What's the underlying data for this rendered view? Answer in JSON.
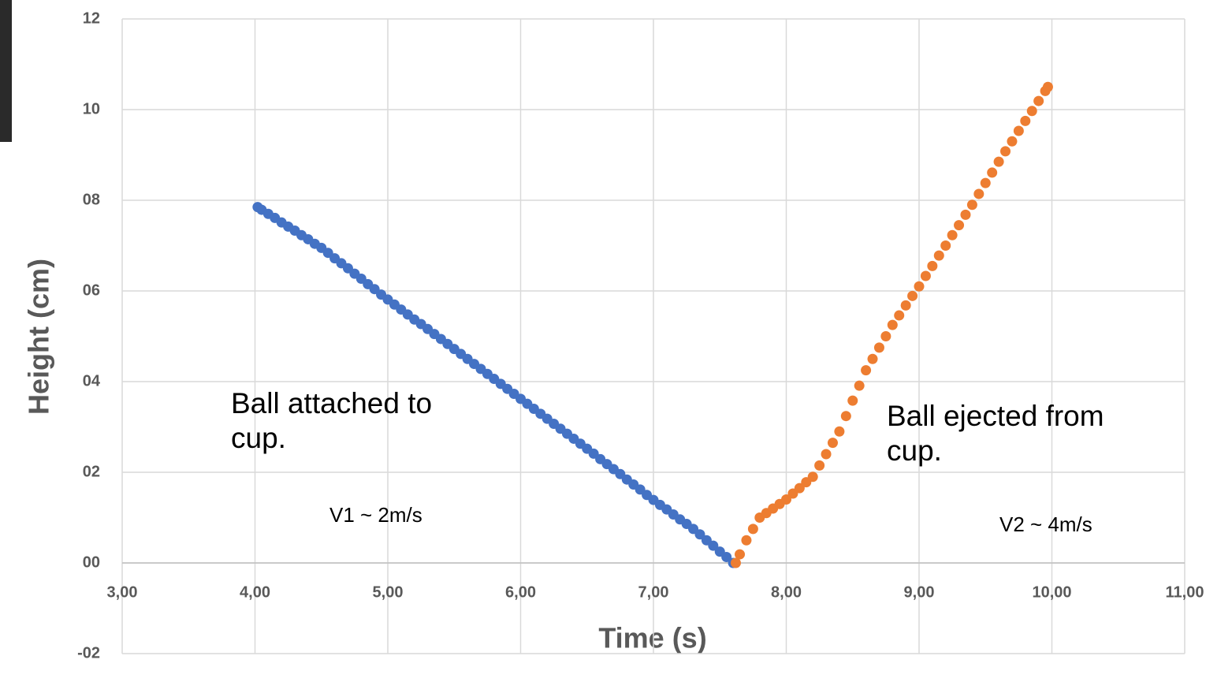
{
  "chart_data": {
    "type": "scatter",
    "xlabel": "Time (s)",
    "ylabel": "Height (cm)",
    "xlim": [
      3,
      11
    ],
    "ylim": [
      -2,
      12
    ],
    "xticks": [
      {
        "value": 3,
        "label": "3,00"
      },
      {
        "value": 4,
        "label": "4,00"
      },
      {
        "value": 5,
        "label": "5,00"
      },
      {
        "value": 6,
        "label": "6,00"
      },
      {
        "value": 7,
        "label": "7,00"
      },
      {
        "value": 8,
        "label": "8,00"
      },
      {
        "value": 9,
        "label": "9,00"
      },
      {
        "value": 10,
        "label": "10,00"
      },
      {
        "value": 11,
        "label": "11,00"
      }
    ],
    "yticks": [
      {
        "value": -2,
        "label": "-02"
      },
      {
        "value": 0,
        "label": "00"
      },
      {
        "value": 2,
        "label": "02"
      },
      {
        "value": 4,
        "label": "04"
      },
      {
        "value": 6,
        "label": "06"
      },
      {
        "value": 8,
        "label": "08"
      },
      10,
      12
    ],
    "grid": true,
    "annotations": [
      "Ball attached to cup.",
      "V1 ~ 2m/s",
      "Ball ejected from cup.",
      "V2 ~ 4m/s"
    ],
    "series": [
      {
        "color": "#4472c4",
        "x": [
          4.02,
          4.05,
          4.1,
          4.15,
          4.2,
          4.25,
          4.3,
          4.35,
          4.4,
          4.45,
          4.5,
          4.55,
          4.6,
          4.65,
          4.7,
          4.75,
          4.8,
          4.85,
          4.9,
          4.95,
          5.0,
          5.05,
          5.1,
          5.15,
          5.2,
          5.25,
          5.3,
          5.35,
          5.4,
          5.45,
          5.5,
          5.55,
          5.6,
          5.65,
          5.7,
          5.75,
          5.8,
          5.85,
          5.9,
          5.95,
          6.0,
          6.05,
          6.1,
          6.15,
          6.2,
          6.25,
          6.3,
          6.35,
          6.4,
          6.45,
          6.5,
          6.55,
          6.6,
          6.65,
          6.7,
          6.75,
          6.8,
          6.85,
          6.9,
          6.95,
          7.0,
          7.05,
          7.1,
          7.15,
          7.2,
          7.25,
          7.3,
          7.35,
          7.4,
          7.45,
          7.5,
          7.55,
          7.6
        ],
        "values": [
          7.85,
          7.79,
          7.7,
          7.61,
          7.51,
          7.42,
          7.33,
          7.23,
          7.14,
          7.04,
          6.95,
          6.84,
          6.72,
          6.61,
          6.5,
          6.38,
          6.27,
          6.15,
          6.04,
          5.92,
          5.81,
          5.7,
          5.59,
          5.48,
          5.37,
          5.27,
          5.16,
          5.05,
          4.94,
          4.83,
          4.72,
          4.61,
          4.5,
          4.39,
          4.28,
          4.17,
          4.06,
          3.95,
          3.84,
          3.73,
          3.62,
          3.51,
          3.4,
          3.29,
          3.18,
          3.07,
          2.96,
          2.85,
          2.74,
          2.63,
          2.52,
          2.41,
          2.29,
          2.18,
          2.07,
          1.96,
          1.84,
          1.73,
          1.62,
          1.5,
          1.39,
          1.28,
          1.18,
          1.07,
          0.96,
          0.86,
          0.75,
          0.63,
          0.5,
          0.38,
          0.25,
          0.13,
          0.0
        ]
      },
      {
        "color": "#ed7d31",
        "x": [
          7.62,
          7.65,
          7.7,
          7.75,
          7.8,
          7.85,
          7.9,
          7.95,
          8.0,
          8.05,
          8.1,
          8.15,
          8.2,
          8.25,
          8.3,
          8.35,
          8.4,
          8.45,
          8.5,
          8.55,
          8.6,
          8.65,
          8.7,
          8.75,
          8.8,
          8.85,
          8.9,
          8.95,
          9.0,
          9.05,
          9.1,
          9.15,
          9.2,
          9.25,
          9.3,
          9.35,
          9.4,
          9.45,
          9.5,
          9.55,
          9.6,
          9.65,
          9.7,
          9.75,
          9.8,
          9.85,
          9.9,
          9.95,
          9.97
        ],
        "values": [
          0.0,
          0.19,
          0.5,
          0.75,
          1.0,
          1.1,
          1.2,
          1.3,
          1.4,
          1.53,
          1.65,
          1.78,
          1.9,
          2.15,
          2.4,
          2.65,
          2.9,
          3.24,
          3.58,
          3.91,
          4.25,
          4.5,
          4.75,
          5.0,
          5.25,
          5.46,
          5.68,
          5.89,
          6.1,
          6.33,
          6.55,
          6.78,
          7.0,
          7.23,
          7.45,
          7.68,
          7.9,
          8.14,
          8.38,
          8.61,
          8.85,
          9.08,
          9.3,
          9.53,
          9.75,
          9.97,
          10.19,
          10.41,
          10.5
        ]
      }
    ]
  }
}
